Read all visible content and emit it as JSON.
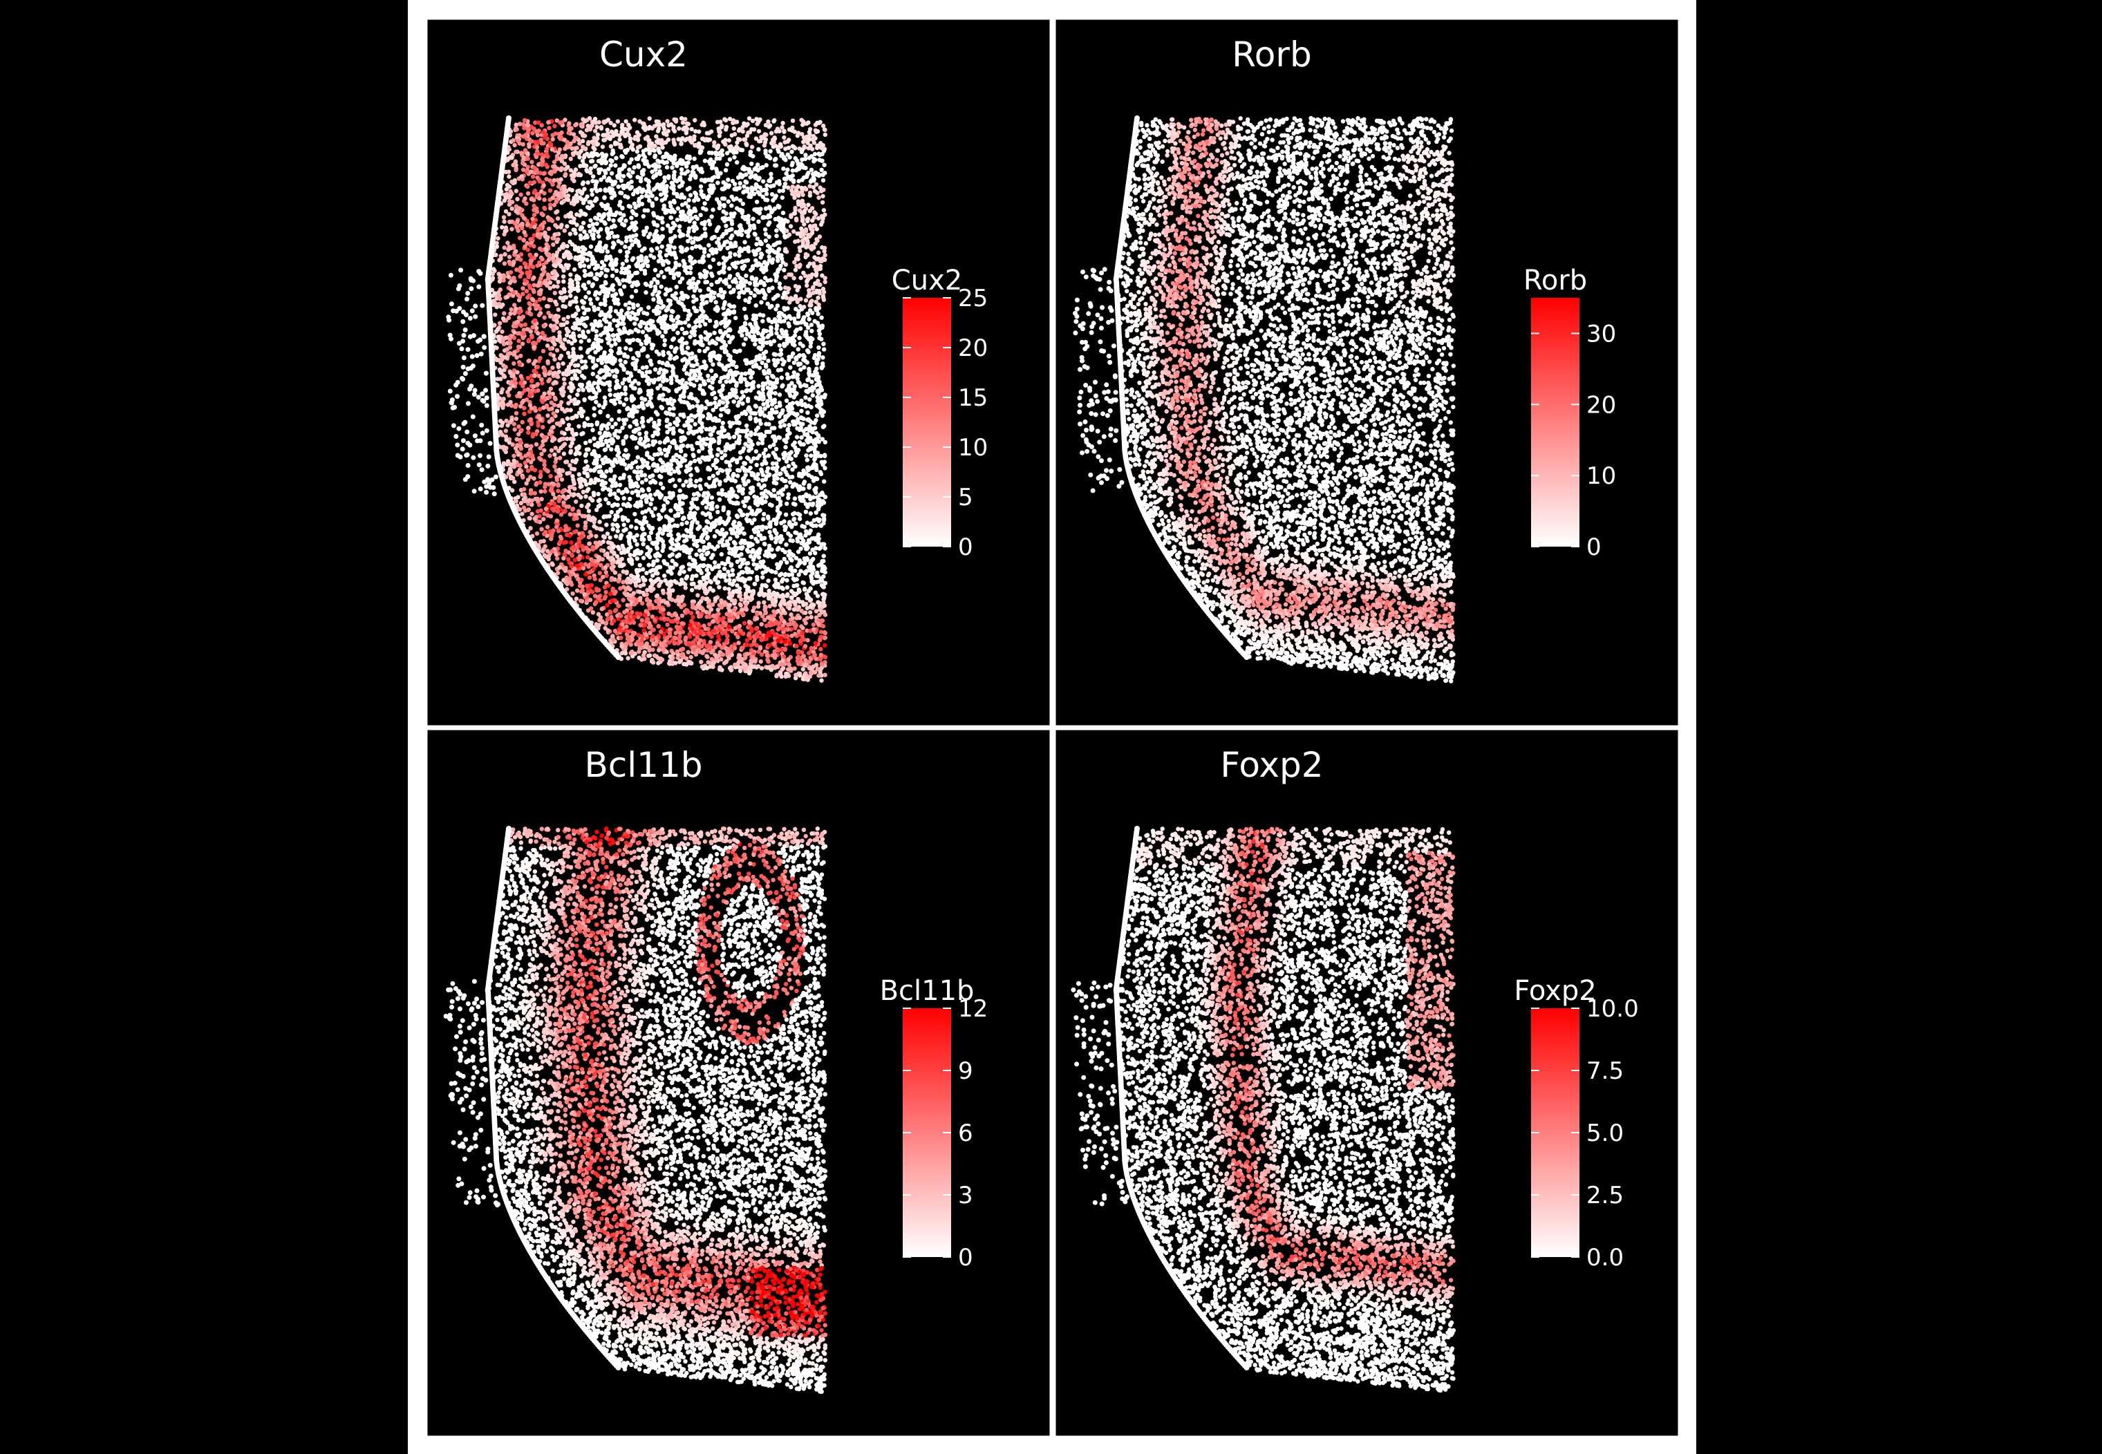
{
  "chart_data": [
    {
      "type": "scatter",
      "title": "Cux2",
      "legend": {
        "title": "Cux2",
        "ticks": [
          "0",
          "5",
          "10",
          "15",
          "20",
          "25"
        ],
        "min": 0,
        "max": 25,
        "low_color": "#ffffff",
        "high_color": "#ff0000",
        "placement": "right"
      },
      "pattern": "superficial-cortex"
    },
    {
      "type": "scatter",
      "title": "Rorb",
      "legend": {
        "title": "Rorb",
        "ticks": [
          "0",
          "10",
          "20",
          "30"
        ],
        "min": 0,
        "max": 35,
        "low_color": "#ffffff",
        "high_color": "#ff0000",
        "placement": "right"
      },
      "pattern": "middle-cortex"
    },
    {
      "type": "scatter",
      "title": "Bcl11b",
      "legend": {
        "title": "Bcl11b",
        "ticks": [
          "0",
          "3",
          "6",
          "9",
          "12"
        ],
        "min": 0,
        "max": 12,
        "low_color": "#ffffff",
        "high_color": "#ff0000",
        "placement": "right"
      },
      "pattern": "deep-cortex-hippocampus"
    },
    {
      "type": "scatter",
      "title": "Foxp2",
      "legend": {
        "title": "Foxp2",
        "ticks": [
          "0.0",
          "2.5",
          "5.0",
          "7.5",
          "10.0"
        ],
        "min": 0,
        "max": 10,
        "low_color": "#ffffff",
        "high_color": "#ff0000",
        "placement": "right"
      },
      "pattern": "deep-layer-thalamus"
    }
  ],
  "colors": {
    "background": "#000000",
    "panel_border": "#ffffff",
    "frame": "#ffffff"
  }
}
